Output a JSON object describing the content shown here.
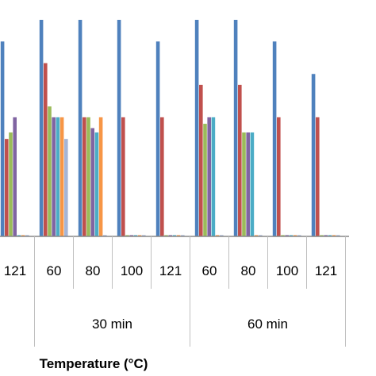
{
  "chart_data": {
    "type": "bar",
    "title": "",
    "xlabel": "Temperature (°C)",
    "ylabel": "",
    "grid": false,
    "categories": [
      "121",
      "60",
      "80",
      "100",
      "121",
      "60",
      "80",
      "100",
      "121"
    ],
    "groups": [
      {
        "label": "30 min",
        "from": 1,
        "to": 4
      },
      {
        "label": "60 min",
        "from": 5,
        "to": 8
      }
    ],
    "ylim": [
      0,
      100
    ],
    "series": [
      {
        "color": "#4f81bd",
        "values": [
          90,
          100,
          100,
          100,
          90,
          100,
          100,
          90,
          75
        ]
      },
      {
        "color": "#c0504d",
        "values": [
          45,
          80,
          55,
          55,
          55,
          70,
          70,
          55,
          55
        ]
      },
      {
        "color": "#9bbb59",
        "values": [
          48,
          60,
          55,
          0,
          0,
          52,
          48,
          0,
          0
        ]
      },
      {
        "color": "#8064a2",
        "values": [
          55,
          55,
          50,
          0,
          0,
          55,
          48,
          0,
          0
        ]
      },
      {
        "color": "#4bacc6",
        "values": [
          0,
          55,
          48,
          0,
          0,
          55,
          48,
          0,
          0
        ]
      },
      {
        "color": "#f79646",
        "values": [
          0,
          55,
          55,
          0,
          0,
          0,
          0,
          0,
          0
        ]
      },
      {
        "color": "#a5b5d6",
        "values": [
          0,
          45,
          0,
          0,
          0,
          0,
          0,
          0,
          0
        ]
      }
    ]
  }
}
